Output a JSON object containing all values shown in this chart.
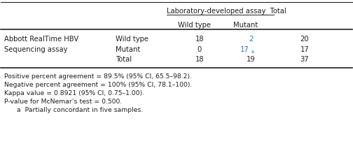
{
  "row_label1": "Abbott RealTime HBV",
  "row_label2": "Sequencing assay",
  "row_sublabels": [
    "Wild type",
    "Mutant",
    "Total"
  ],
  "header_main": "Laboratory-developed assay  Total",
  "header_sub1": "Wild type",
  "header_sub2": "Mutant",
  "data": [
    [
      "18",
      "2",
      "20"
    ],
    [
      "0",
      "17",
      "17"
    ],
    [
      "18",
      "19",
      "37"
    ]
  ],
  "footnotes": [
    "Positive percent agreement = 89.5% (95% CI, 65.5–98.2).",
    "Negative percent agreement = 100% (95% CI, 78.1–100).",
    "Kappa value = 0.8921 (95% CI, 0.75–1.00).",
    "P-value for McNemar’s test = 0.500."
  ],
  "footnote_a": "  a  Partially concordant in five samples.",
  "text_color": "#231f20",
  "blue_color": "#2e75b6",
  "bg_color": "#ffffff"
}
